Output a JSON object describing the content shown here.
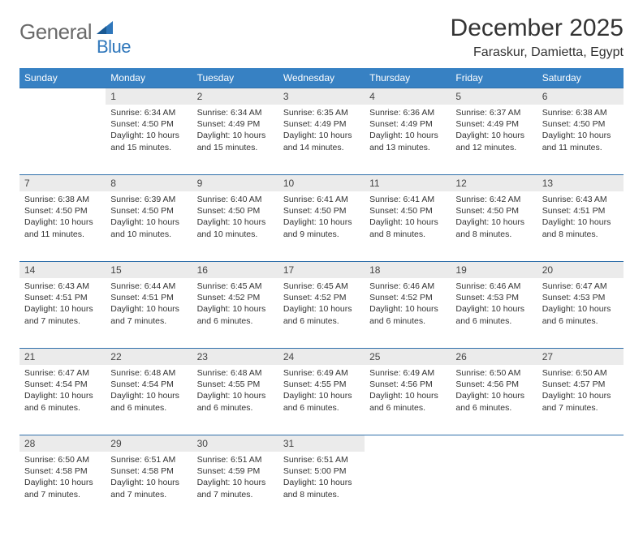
{
  "brand": {
    "main": "General",
    "accent": "Blue"
  },
  "title": "December 2025",
  "subtitle": "Faraskur, Damietta, Egypt",
  "colors": {
    "header_bg": "#3781c3",
    "header_fg": "#ffffff",
    "daynum_bg": "#ebebeb",
    "daynum_border": "#2f6faa",
    "logo_main": "#6a6a6a",
    "logo_accent": "#2f77bb",
    "text": "#333333"
  },
  "column_headers": [
    "Sunday",
    "Monday",
    "Tuesday",
    "Wednesday",
    "Thursday",
    "Friday",
    "Saturday"
  ],
  "fontsize": {
    "title": 30,
    "subtitle": 16,
    "header": 12,
    "daynum": 12,
    "body": 10.5
  },
  "weeks": [
    [
      null,
      {
        "n": "1",
        "sr": "6:34 AM",
        "ss": "4:50 PM",
        "dl": "10 hours and 15 minutes."
      },
      {
        "n": "2",
        "sr": "6:34 AM",
        "ss": "4:49 PM",
        "dl": "10 hours and 15 minutes."
      },
      {
        "n": "3",
        "sr": "6:35 AM",
        "ss": "4:49 PM",
        "dl": "10 hours and 14 minutes."
      },
      {
        "n": "4",
        "sr": "6:36 AM",
        "ss": "4:49 PM",
        "dl": "10 hours and 13 minutes."
      },
      {
        "n": "5",
        "sr": "6:37 AM",
        "ss": "4:49 PM",
        "dl": "10 hours and 12 minutes."
      },
      {
        "n": "6",
        "sr": "6:38 AM",
        "ss": "4:50 PM",
        "dl": "10 hours and 11 minutes."
      }
    ],
    [
      {
        "n": "7",
        "sr": "6:38 AM",
        "ss": "4:50 PM",
        "dl": "10 hours and 11 minutes."
      },
      {
        "n": "8",
        "sr": "6:39 AM",
        "ss": "4:50 PM",
        "dl": "10 hours and 10 minutes."
      },
      {
        "n": "9",
        "sr": "6:40 AM",
        "ss": "4:50 PM",
        "dl": "10 hours and 10 minutes."
      },
      {
        "n": "10",
        "sr": "6:41 AM",
        "ss": "4:50 PM",
        "dl": "10 hours and 9 minutes."
      },
      {
        "n": "11",
        "sr": "6:41 AM",
        "ss": "4:50 PM",
        "dl": "10 hours and 8 minutes."
      },
      {
        "n": "12",
        "sr": "6:42 AM",
        "ss": "4:50 PM",
        "dl": "10 hours and 8 minutes."
      },
      {
        "n": "13",
        "sr": "6:43 AM",
        "ss": "4:51 PM",
        "dl": "10 hours and 8 minutes."
      }
    ],
    [
      {
        "n": "14",
        "sr": "6:43 AM",
        "ss": "4:51 PM",
        "dl": "10 hours and 7 minutes."
      },
      {
        "n": "15",
        "sr": "6:44 AM",
        "ss": "4:51 PM",
        "dl": "10 hours and 7 minutes."
      },
      {
        "n": "16",
        "sr": "6:45 AM",
        "ss": "4:52 PM",
        "dl": "10 hours and 6 minutes."
      },
      {
        "n": "17",
        "sr": "6:45 AM",
        "ss": "4:52 PM",
        "dl": "10 hours and 6 minutes."
      },
      {
        "n": "18",
        "sr": "6:46 AM",
        "ss": "4:52 PM",
        "dl": "10 hours and 6 minutes."
      },
      {
        "n": "19",
        "sr": "6:46 AM",
        "ss": "4:53 PM",
        "dl": "10 hours and 6 minutes."
      },
      {
        "n": "20",
        "sr": "6:47 AM",
        "ss": "4:53 PM",
        "dl": "10 hours and 6 minutes."
      }
    ],
    [
      {
        "n": "21",
        "sr": "6:47 AM",
        "ss": "4:54 PM",
        "dl": "10 hours and 6 minutes."
      },
      {
        "n": "22",
        "sr": "6:48 AM",
        "ss": "4:54 PM",
        "dl": "10 hours and 6 minutes."
      },
      {
        "n": "23",
        "sr": "6:48 AM",
        "ss": "4:55 PM",
        "dl": "10 hours and 6 minutes."
      },
      {
        "n": "24",
        "sr": "6:49 AM",
        "ss": "4:55 PM",
        "dl": "10 hours and 6 minutes."
      },
      {
        "n": "25",
        "sr": "6:49 AM",
        "ss": "4:56 PM",
        "dl": "10 hours and 6 minutes."
      },
      {
        "n": "26",
        "sr": "6:50 AM",
        "ss": "4:56 PM",
        "dl": "10 hours and 6 minutes."
      },
      {
        "n": "27",
        "sr": "6:50 AM",
        "ss": "4:57 PM",
        "dl": "10 hours and 7 minutes."
      }
    ],
    [
      {
        "n": "28",
        "sr": "6:50 AM",
        "ss": "4:58 PM",
        "dl": "10 hours and 7 minutes."
      },
      {
        "n": "29",
        "sr": "6:51 AM",
        "ss": "4:58 PM",
        "dl": "10 hours and 7 minutes."
      },
      {
        "n": "30",
        "sr": "6:51 AM",
        "ss": "4:59 PM",
        "dl": "10 hours and 7 minutes."
      },
      {
        "n": "31",
        "sr": "6:51 AM",
        "ss": "5:00 PM",
        "dl": "10 hours and 8 minutes."
      },
      null,
      null,
      null
    ]
  ],
  "labels": {
    "sunrise": "Sunrise:",
    "sunset": "Sunset:",
    "daylight": "Daylight:"
  }
}
